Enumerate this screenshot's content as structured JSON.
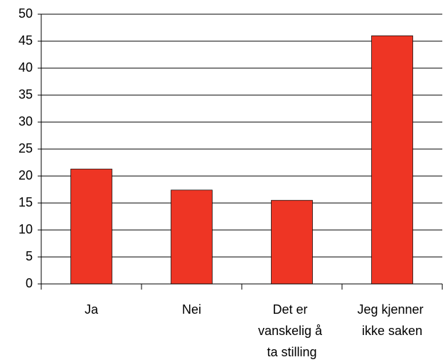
{
  "chart_data": {
    "type": "bar",
    "categories": [
      "Ja",
      "Nei",
      "Det er vanskelig å ta stilling",
      "Jeg kjenner ikke saken"
    ],
    "values": [
      21.3,
      17.4,
      15.5,
      46.0
    ],
    "color": "#ee3524",
    "ylim": [
      0,
      50
    ],
    "yticks": [
      0,
      5,
      10,
      15,
      20,
      25,
      30,
      35,
      40,
      45,
      50
    ],
    "grid": true
  }
}
